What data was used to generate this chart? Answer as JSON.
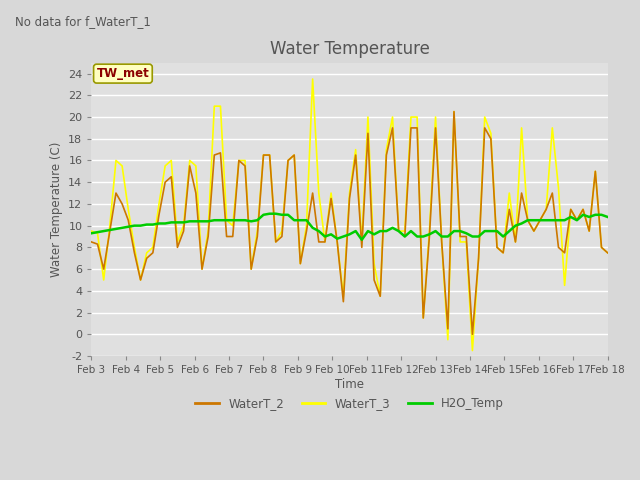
{
  "title": "Water Temperature",
  "ylabel": "Water Temperature (C)",
  "xlabel": "Time",
  "annotation_text": "No data for f_WaterT_1",
  "legend_label_text": "TW_met",
  "ylim": [
    -2,
    25
  ],
  "fig_bg_color": "#d8d8d8",
  "plot_bg_color": "#e0e0e0",
  "grid_color": "#ffffff",
  "xtick_labels": [
    "Feb 3",
    "Feb 4",
    "Feb 5",
    "Feb 6",
    "Feb 7",
    "Feb 8",
    "Feb 9",
    "Feb 10",
    "Feb 11",
    "Feb 12",
    "Feb 13",
    "Feb 14",
    "Feb 15",
    "Feb 16",
    "Feb 17",
    "Feb 18"
  ],
  "WaterT_2_color": "#cc7700",
  "WaterT_3_color": "#ffff00",
  "H2O_Temp_color": "#00cc00",
  "WaterT_2": [
    8.5,
    8.3,
    6.0,
    9.5,
    13.0,
    12.0,
    10.5,
    7.5,
    5.0,
    7.0,
    7.5,
    11.0,
    14.0,
    14.5,
    8.0,
    9.5,
    15.5,
    13.0,
    6.0,
    9.0,
    16.5,
    16.7,
    9.0,
    9.0,
    16.0,
    15.5,
    6.0,
    9.0,
    16.5,
    16.5,
    8.5,
    9.0,
    16.0,
    16.5,
    6.5,
    9.5,
    13.0,
    8.5,
    8.5,
    12.5,
    8.5,
    3.0,
    12.5,
    16.5,
    8.0,
    18.5,
    5.0,
    3.5,
    16.5,
    19.0,
    9.5,
    9.0,
    19.0,
    19.0,
    1.5,
    9.0,
    19.0,
    8.5,
    0.5,
    20.5,
    9.0,
    9.0,
    0.0,
    7.0,
    19.0,
    18.0,
    8.0,
    7.5,
    11.5,
    8.5,
    13.0,
    10.5,
    9.5,
    10.5,
    11.5,
    13.0,
    8.0,
    7.5,
    11.5,
    10.5,
    11.5,
    9.5,
    15.0,
    8.0,
    7.5
  ],
  "WaterT_3": [
    9.5,
    9.3,
    5.0,
    10.0,
    16.0,
    15.5,
    11.5,
    8.0,
    5.0,
    7.5,
    8.0,
    12.0,
    15.5,
    16.0,
    8.5,
    10.0,
    16.0,
    15.5,
    6.0,
    9.5,
    21.0,
    21.0,
    10.5,
    10.0,
    16.0,
    16.0,
    6.0,
    9.5,
    16.5,
    16.5,
    8.5,
    9.5,
    16.0,
    16.5,
    6.5,
    10.0,
    23.5,
    13.0,
    8.5,
    13.0,
    8.5,
    3.5,
    13.0,
    17.0,
    8.5,
    20.0,
    6.5,
    3.5,
    17.0,
    20.0,
    9.5,
    9.5,
    20.0,
    20.0,
    1.5,
    9.5,
    20.0,
    8.5,
    -0.5,
    20.5,
    8.5,
    8.5,
    -1.5,
    7.0,
    20.0,
    18.5,
    8.0,
    7.5,
    13.0,
    8.5,
    19.0,
    10.5,
    9.5,
    10.5,
    11.5,
    19.0,
    13.5,
    4.5,
    11.5,
    10.5,
    11.5,
    9.5,
    15.0,
    8.0,
    7.5
  ],
  "H2O_Temp": [
    9.3,
    9.4,
    9.5,
    9.6,
    9.7,
    9.8,
    9.9,
    10.0,
    10.0,
    10.1,
    10.1,
    10.2,
    10.2,
    10.3,
    10.3,
    10.3,
    10.4,
    10.4,
    10.4,
    10.4,
    10.5,
    10.5,
    10.5,
    10.5,
    10.5,
    10.5,
    10.4,
    10.5,
    11.0,
    11.1,
    11.1,
    11.0,
    11.0,
    10.5,
    10.5,
    10.5,
    9.8,
    9.5,
    9.0,
    9.2,
    8.8,
    9.0,
    9.2,
    9.5,
    8.7,
    9.5,
    9.2,
    9.5,
    9.5,
    9.8,
    9.5,
    9.0,
    9.5,
    9.0,
    9.0,
    9.2,
    9.5,
    9.0,
    9.0,
    9.5,
    9.5,
    9.3,
    9.0,
    9.0,
    9.5,
    9.5,
    9.5,
    9.0,
    9.5,
    10.0,
    10.2,
    10.5,
    10.5,
    10.5,
    10.5,
    10.5,
    10.5,
    10.5,
    10.8,
    10.5,
    11.0,
    10.8,
    11.0,
    11.0,
    10.8
  ]
}
